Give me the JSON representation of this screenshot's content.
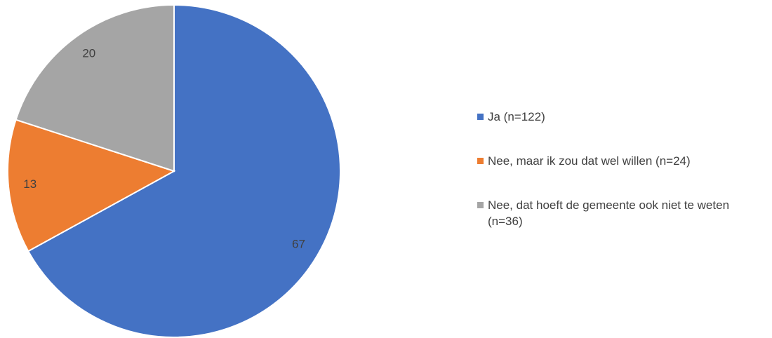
{
  "chart_data": {
    "type": "pie",
    "categories": [
      "Ja (n=122)",
      "Nee, maar ik zou dat wel willen (n=24)",
      "Nee, dat hoeft de gemeente ook niet te weten (n=36)"
    ],
    "values": [
      67,
      13,
      20
    ],
    "colors": [
      "#4472c4",
      "#ed7d31",
      "#a5a5a5"
    ],
    "legend": "right"
  }
}
